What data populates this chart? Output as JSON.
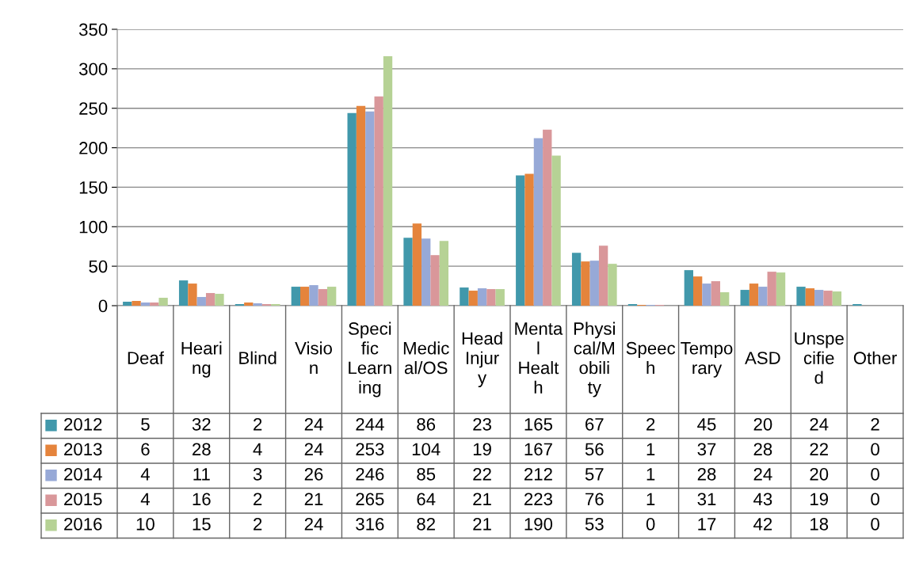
{
  "chart_data": {
    "type": "bar",
    "categories": [
      "Deaf",
      "Hearing",
      "Blind",
      "Vision",
      "Specific Learning",
      "Medical/OS",
      "Head Injury",
      "Mental Health",
      "Physical/Mobility",
      "Speech",
      "Temporary",
      "ASD",
      "Unspecified",
      "Other"
    ],
    "series": [
      {
        "name": "2012",
        "color": "#4198ab",
        "values": [
          5,
          32,
          2,
          24,
          244,
          86,
          23,
          165,
          67,
          2,
          45,
          20,
          24,
          2
        ]
      },
      {
        "name": "2013",
        "color": "#e5843c",
        "values": [
          6,
          28,
          4,
          24,
          253,
          104,
          19,
          167,
          56,
          1,
          37,
          28,
          22,
          0
        ]
      },
      {
        "name": "2014",
        "color": "#97a9d7",
        "values": [
          4,
          11,
          3,
          26,
          246,
          85,
          22,
          212,
          57,
          1,
          28,
          24,
          20,
          0
        ]
      },
      {
        "name": "2015",
        "color": "#d9979a",
        "values": [
          4,
          16,
          2,
          21,
          265,
          64,
          21,
          223,
          76,
          1,
          31,
          43,
          19,
          0
        ]
      },
      {
        "name": "2016",
        "color": "#b6d295",
        "values": [
          10,
          15,
          2,
          24,
          316,
          82,
          21,
          190,
          53,
          0,
          17,
          42,
          18,
          0
        ]
      }
    ],
    "ylim": [
      0,
      350
    ],
    "yticks": [
      0,
      50,
      100,
      150,
      200,
      250,
      300,
      350
    ],
    "grid": "y",
    "legend": "bottom",
    "data_labels": true
  }
}
